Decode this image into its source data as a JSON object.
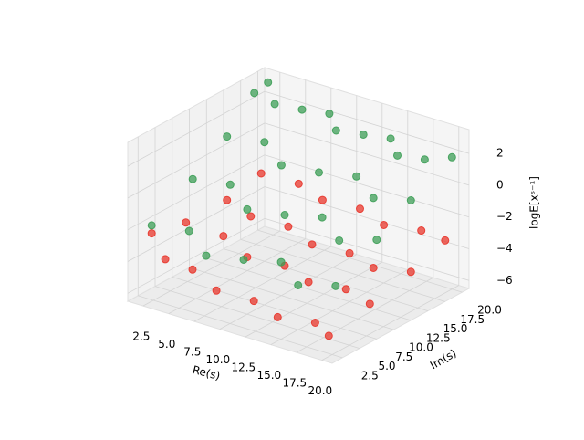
{
  "chart_data": {
    "type": "scatter3d",
    "xlabel": "Re(s)",
    "ylabel": "Im(s)",
    "zlabel": "logE[xˢ⁻¹]",
    "xlim": [
      1,
      21
    ],
    "ylim": [
      1,
      21
    ],
    "zlim": [
      -6.5,
      3.5
    ],
    "xticks": [
      2.5,
      {
        "value": 5,
        "label": "5.0"
      },
      7.5,
      {
        "value": 10,
        "label": "10.0"
      },
      12.5,
      {
        "value": 15,
        "label": "15.0"
      },
      17.5,
      {
        "value": 20,
        "label": "20.0"
      }
    ],
    "yticks": [
      2.5,
      {
        "value": 5,
        "label": "5.0"
      },
      7.5,
      {
        "value": 10,
        "label": "10.0"
      },
      12.5,
      {
        "value": 15,
        "label": "15.0"
      },
      17.5,
      {
        "value": 20,
        "label": "20.0"
      }
    ],
    "zticks": [
      {
        "value": -6,
        "label": "−6"
      },
      {
        "value": -4,
        "label": "−4"
      },
      {
        "value": -2,
        "label": "−2"
      },
      0,
      2
    ],
    "grid": true,
    "series": [
      {
        "color": "#e8352b",
        "x": [
          2,
          4,
          6,
          9,
          12,
          15,
          18,
          20,
          2,
          5,
          8,
          11,
          14,
          17,
          20,
          2,
          5,
          8,
          11,
          14,
          17,
          20,
          2,
          5,
          8,
          11,
          14,
          17,
          20
        ],
        "y": [
          3,
          2,
          3,
          2,
          3,
          2,
          3,
          2,
          8,
          9,
          8,
          9,
          8,
          9,
          8,
          14,
          13,
          14,
          13,
          14,
          13,
          14,
          19,
          20,
          19,
          20,
          19,
          20,
          19
        ],
        "z": [
          -2.5,
          -3.5,
          -4,
          -4.5,
          -4.8,
          -5,
          -5,
          -5.2,
          -3,
          -3.5,
          -4,
          -4.2,
          -4.4,
          -4.5,
          -4.6,
          -3,
          -3.2,
          -3.5,
          -3.8,
          -4,
          -4.1,
          -4,
          -2.5,
          -2.8,
          -3,
          -3.2,
          -3.4,
          -3.4,
          -3.2
        ]
      },
      {
        "color": "#3d9e57",
        "x": [
          2,
          2,
          4,
          6,
          8,
          10,
          12,
          14,
          16,
          18,
          20,
          2,
          5,
          8,
          11,
          14,
          17,
          20,
          2,
          5,
          8,
          11,
          14,
          17,
          20,
          2,
          5,
          8,
          11,
          14,
          17,
          20
        ],
        "y": [
          20,
          18,
          18,
          19,
          20,
          18,
          19,
          20,
          18,
          19,
          20,
          14,
          15,
          13,
          14,
          15,
          13,
          14,
          9,
          10,
          8,
          9,
          10,
          8,
          9,
          3,
          4,
          2,
          3,
          4,
          2,
          3
        ],
        "z": [
          3,
          2.8,
          2.5,
          2.3,
          2.2,
          2,
          1.9,
          1.8,
          1.6,
          1.5,
          1.8,
          1,
          1,
          0.6,
          0.5,
          0.6,
          0.3,
          0.5,
          -0.5,
          -0.5,
          -1,
          -1,
          -0.8,
          -1.2,
          -0.8,
          -2,
          -2,
          -2.5,
          -2.4,
          -2.2,
          -2.6,
          -2.3
        ]
      }
    ]
  }
}
